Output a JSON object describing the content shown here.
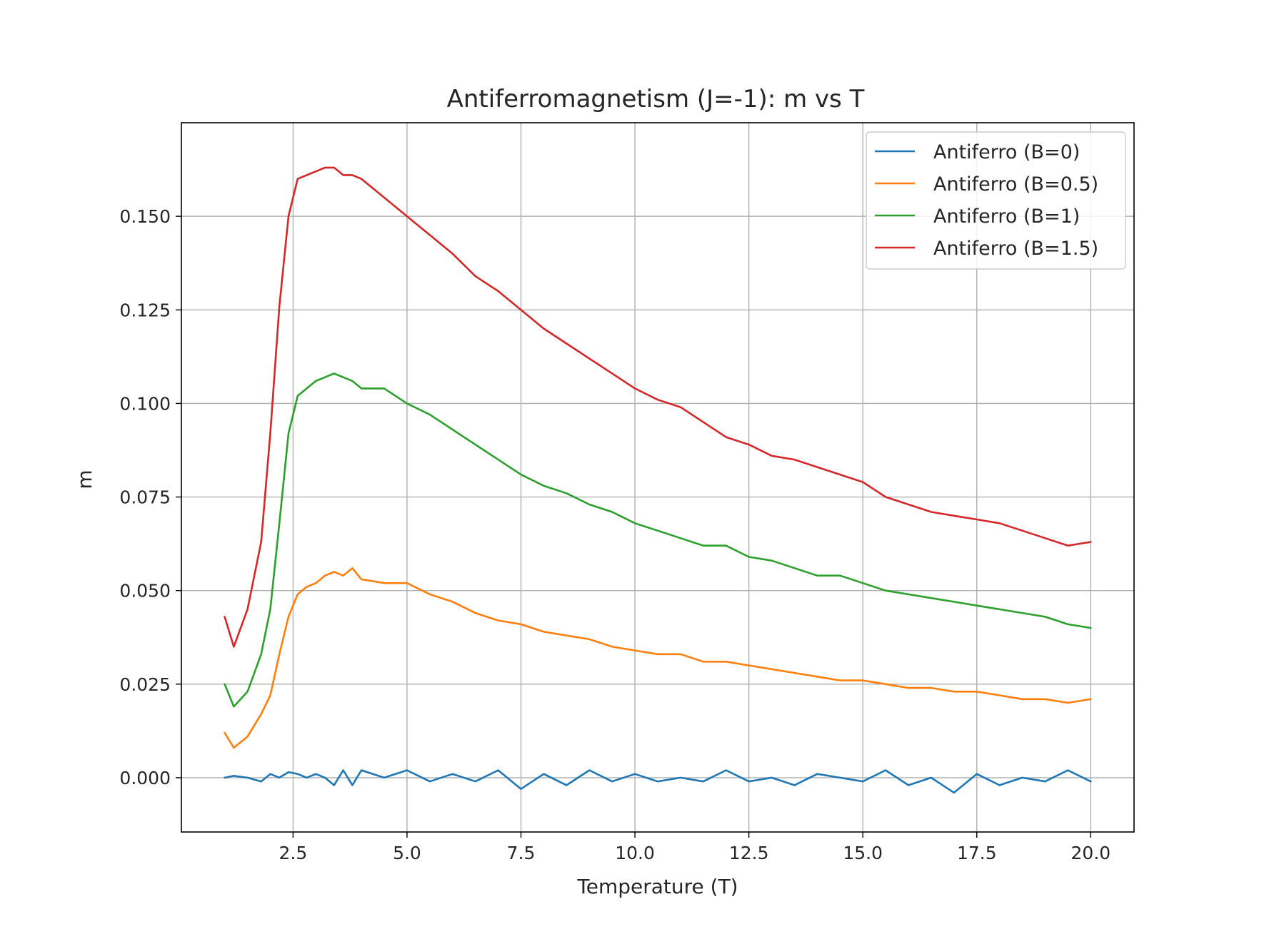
{
  "chart_data": {
    "type": "line",
    "title": "Antiferromagnetism (J=-1): m vs T",
    "xlabel": "Temperature (T)",
    "ylabel": "m",
    "xlim": [
      0.05,
      20.95
    ],
    "ylim": [
      -0.0145,
      0.175
    ],
    "xticks": [
      2.5,
      5.0,
      7.5,
      10.0,
      12.5,
      15.0,
      17.5,
      20.0
    ],
    "xtick_labels": [
      "2.5",
      "5.0",
      "7.5",
      "10.0",
      "12.5",
      "15.0",
      "17.5",
      "20.0"
    ],
    "yticks": [
      0.0,
      0.025,
      0.05,
      0.075,
      0.1,
      0.125,
      0.15
    ],
    "ytick_labels": [
      "0.000",
      "0.025",
      "0.050",
      "0.075",
      "0.100",
      "0.125",
      "0.150"
    ],
    "grid": true,
    "legend_position": "top-right",
    "x": [
      1.0,
      1.2,
      1.5,
      1.8,
      2.0,
      2.2,
      2.4,
      2.6,
      2.8,
      3.0,
      3.2,
      3.4,
      3.6,
      3.8,
      4.0,
      4.5,
      5.0,
      5.5,
      6.0,
      6.5,
      7.0,
      7.5,
      8.0,
      8.5,
      9.0,
      9.5,
      10.0,
      10.5,
      11.0,
      11.5,
      12.0,
      12.5,
      13.0,
      13.5,
      14.0,
      14.5,
      15.0,
      15.5,
      16.0,
      16.5,
      17.0,
      17.5,
      18.0,
      18.5,
      19.0,
      19.5,
      20.0
    ],
    "series": [
      {
        "name": "Antiferro (B=0)",
        "color": "#1f77b4",
        "values": [
          0.0,
          0.0005,
          0.0,
          -0.001,
          0.001,
          0.0,
          0.0015,
          0.001,
          0.0,
          0.001,
          0.0,
          -0.002,
          0.002,
          -0.002,
          0.002,
          0.0,
          0.002,
          -0.001,
          0.001,
          -0.001,
          0.002,
          -0.003,
          0.001,
          -0.002,
          0.002,
          -0.001,
          0.001,
          -0.001,
          0.0,
          -0.001,
          0.002,
          -0.001,
          0.0,
          -0.002,
          0.001,
          0.0,
          -0.001,
          0.002,
          -0.002,
          0.0,
          -0.004,
          0.001,
          -0.002,
          0.0,
          -0.001,
          0.002,
          -0.001
        ]
      },
      {
        "name": "Antiferro (B=0.5)",
        "color": "#ff7f0e",
        "values": [
          0.012,
          0.008,
          0.011,
          0.017,
          0.022,
          0.033,
          0.043,
          0.049,
          0.051,
          0.052,
          0.054,
          0.055,
          0.054,
          0.056,
          0.053,
          0.052,
          0.052,
          0.049,
          0.047,
          0.044,
          0.042,
          0.041,
          0.039,
          0.038,
          0.037,
          0.035,
          0.034,
          0.033,
          0.033,
          0.031,
          0.031,
          0.03,
          0.029,
          0.028,
          0.027,
          0.026,
          0.026,
          0.025,
          0.024,
          0.024,
          0.023,
          0.023,
          0.022,
          0.021,
          0.021,
          0.02,
          0.021
        ]
      },
      {
        "name": "Antiferro (B=1)",
        "color": "#2ca02c",
        "values": [
          0.025,
          0.019,
          0.023,
          0.033,
          0.045,
          0.068,
          0.092,
          0.102,
          0.104,
          0.106,
          0.107,
          0.108,
          0.107,
          0.106,
          0.104,
          0.104,
          0.1,
          0.097,
          0.093,
          0.089,
          0.085,
          0.081,
          0.078,
          0.076,
          0.073,
          0.071,
          0.068,
          0.066,
          0.064,
          0.062,
          0.062,
          0.059,
          0.058,
          0.056,
          0.054,
          0.054,
          0.052,
          0.05,
          0.049,
          0.048,
          0.047,
          0.046,
          0.045,
          0.044,
          0.043,
          0.041,
          0.04
        ]
      },
      {
        "name": "Antiferro (B=1.5)",
        "color": "#d62728",
        "values": [
          0.043,
          0.035,
          0.045,
          0.063,
          0.092,
          0.126,
          0.15,
          0.16,
          0.161,
          0.162,
          0.163,
          0.163,
          0.161,
          0.161,
          0.16,
          0.155,
          0.15,
          0.145,
          0.14,
          0.134,
          0.13,
          0.125,
          0.12,
          0.116,
          0.112,
          0.108,
          0.104,
          0.101,
          0.099,
          0.095,
          0.091,
          0.089,
          0.086,
          0.085,
          0.083,
          0.081,
          0.079,
          0.075,
          0.073,
          0.071,
          0.07,
          0.069,
          0.068,
          0.066,
          0.064,
          0.062,
          0.063
        ]
      }
    ]
  }
}
